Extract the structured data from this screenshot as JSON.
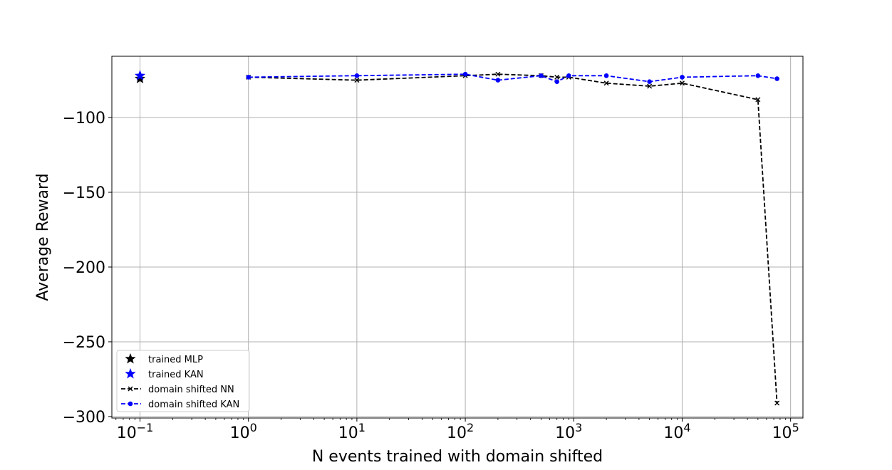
{
  "chart_data": {
    "type": "line",
    "title": "",
    "xlabel": "N events trained with domain shifted",
    "ylabel": "Average Reward",
    "xscale": "log",
    "xlim": [
      0.055,
      130000
    ],
    "ylim": [
      -301,
      -59
    ],
    "yticks": [
      -100,
      -150,
      -200,
      -250,
      -300
    ],
    "ytick_labels": [
      "−100",
      "−150",
      "−200",
      "−250",
      "−300"
    ],
    "xticks": [
      {
        "value": 0.1,
        "base": "10",
        "exp": "−1"
      },
      {
        "value": 1,
        "base": "10",
        "exp": "0"
      },
      {
        "value": 10,
        "base": "10",
        "exp": "1"
      },
      {
        "value": 100,
        "base": "10",
        "exp": "2"
      },
      {
        "value": 1000,
        "base": "10",
        "exp": "3"
      },
      {
        "value": 10000,
        "base": "10",
        "exp": "4"
      },
      {
        "value": 100000,
        "base": "10",
        "exp": "5"
      }
    ],
    "grid": true,
    "legend_position": "bottom-left",
    "series": [
      {
        "name": "trained MLP",
        "style": "star",
        "color": "#000000",
        "x": [
          0.1
        ],
        "y": [
          -74
        ]
      },
      {
        "name": "trained KAN",
        "style": "star",
        "color": "#0000ff",
        "x": [
          0.1
        ],
        "y": [
          -72
        ]
      },
      {
        "name": "domain shifted NN",
        "style": "dashed-x",
        "color": "#000000",
        "x": [
          1,
          10,
          100,
          200,
          500,
          700,
          900,
          2000,
          5000,
          10000,
          50000,
          75000
        ],
        "y": [
          -73,
          -75,
          -72,
          -71,
          -72,
          -73,
          -73,
          -77,
          -79,
          -77,
          -88,
          -291
        ]
      },
      {
        "name": "domain shifted KAN",
        "style": "dashed-dot",
        "color": "#0000ff",
        "x": [
          1,
          10,
          100,
          200,
          500,
          700,
          900,
          2000,
          5000,
          10000,
          50000,
          75000
        ],
        "y": [
          -73,
          -72,
          -71,
          -75,
          -72,
          -76,
          -72,
          -72,
          -76,
          -73,
          -72,
          -74
        ]
      }
    ]
  }
}
